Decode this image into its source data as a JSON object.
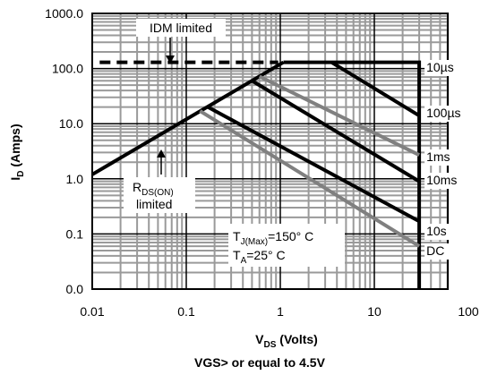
{
  "chart_data": {
    "type": "line",
    "log_x": true,
    "log_y": true,
    "grid": true,
    "xlabel": {
      "main": "V",
      "sub": "DS",
      "rest": " (Volts)"
    },
    "ylabel": {
      "main": "I",
      "sub": "D",
      "rest": " (Amps)"
    },
    "footnote": "VGS> or equal to 4.5V",
    "xlim": [
      0.01,
      100
    ],
    "ylim": [
      0.01,
      1000
    ],
    "xticks": [
      0.01,
      0.1,
      1,
      10,
      100
    ],
    "yticks": [
      {
        "value": 0.01,
        "label": "0.0"
      },
      {
        "value": 0.1,
        "label": "0.1"
      },
      {
        "value": 1,
        "label": "1.0"
      },
      {
        "value": 10,
        "label": "10.0"
      },
      {
        "value": 100,
        "label": "100.0"
      },
      {
        "value": 1000,
        "label": "1000.0"
      }
    ],
    "limit_lines": [
      {
        "label": "IDM limited",
        "x": [
          0.012,
          0.95
        ],
        "values": [
          130,
          130
        ],
        "dashed": true,
        "color": "#000000"
      },
      {
        "label": {
          "main": "R",
          "sub": "DS(ON)",
          "rest": "limited"
        },
        "x": [
          0.01,
          1.08
        ],
        "values": [
          1.2,
          130
        ],
        "dashed": false,
        "color": "#000000"
      }
    ],
    "conditions": [
      {
        "main": "T",
        "sub": "J(Max)",
        "rest": "=150° C"
      },
      {
        "main": "T",
        "sub": "A",
        "rest": "=25° C"
      }
    ],
    "series": [
      {
        "name": "10µs",
        "color": "#000000",
        "x": [
          1.08,
          30,
          30
        ],
        "values": [
          130,
          130,
          0.01
        ]
      },
      {
        "name": "100µs",
        "color": "#000000",
        "x": [
          3.5,
          30
        ],
        "values": [
          130,
          14
        ]
      },
      {
        "name": "1ms",
        "color": "#808080",
        "x": [
          0.6,
          30
        ],
        "values": [
          72,
          2.7
        ]
      },
      {
        "name": "10ms",
        "color": "#000000",
        "x": [
          0.5,
          30
        ],
        "values": [
          60,
          0.9
        ]
      },
      {
        "name": "10s",
        "color": "#000000",
        "x": [
          0.17,
          30
        ],
        "values": [
          20,
          0.17
        ]
      },
      {
        "name": "DC",
        "color": "#808080",
        "x": [
          0.14,
          30
        ],
        "values": [
          17,
          0.06
        ]
      }
    ]
  }
}
